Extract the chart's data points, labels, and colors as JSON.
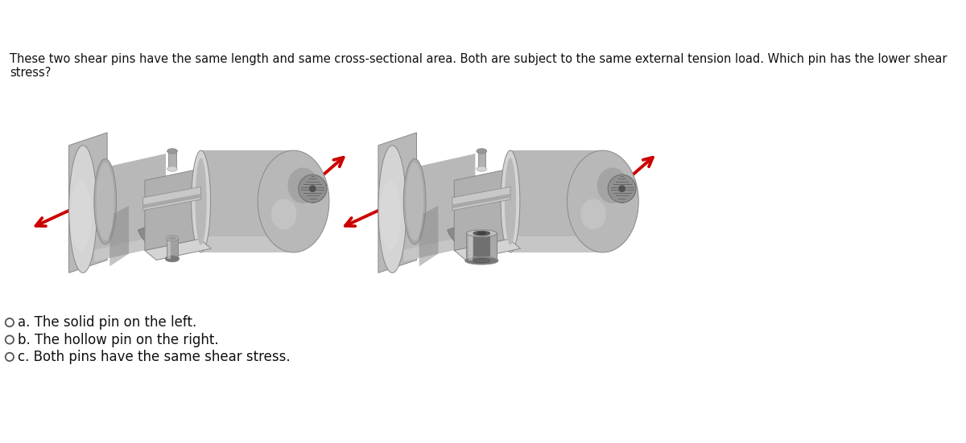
{
  "question_text": "These two shear pins have the same length and same cross-sectional area. Both are subject to the same external tension load. Which pin has the lower shear\nstress?",
  "options": [
    "a. The solid pin on the left.",
    "b. The hollow pin on the right.",
    "c. Both pins have the same shear stress."
  ],
  "bg_color": "#ffffff",
  "question_fontsize": 10.5,
  "option_fontsize": 12,
  "arrow_color": "#cc0000",
  "c_light": "#d4d4d4",
  "c_mid": "#b8b8b8",
  "c_dark": "#989898",
  "c_darker": "#787878",
  "c_shadow": "#606060",
  "c_edge": "#888888"
}
